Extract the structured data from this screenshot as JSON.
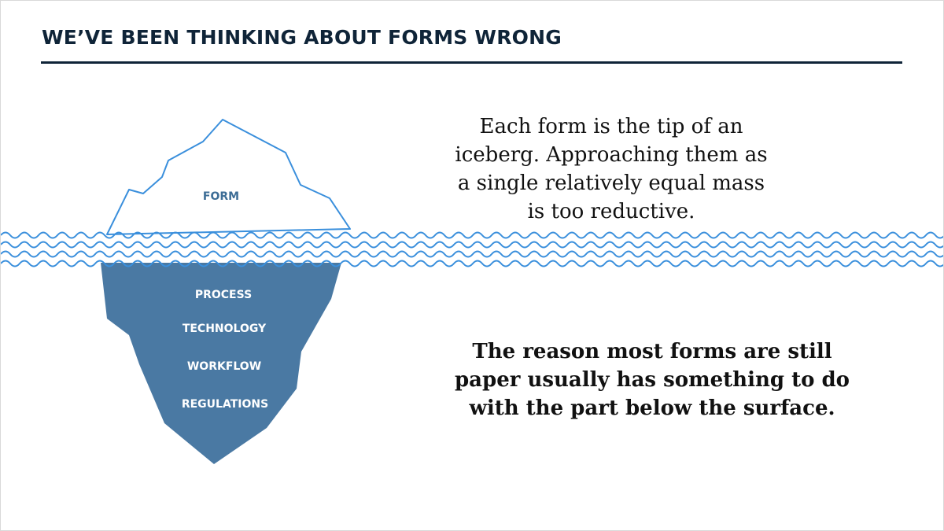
{
  "slide": {
    "title": "WE’VE BEEN THINKING ABOUT FORMS WRONG"
  },
  "diagram": {
    "above_surface_label": "FORM",
    "below_surface_labels": [
      "PROCESS",
      "TECHNOLOGY",
      "WORKFLOW",
      "REGULATIONS"
    ],
    "colors": {
      "outline": "#3a8fdc",
      "submerged": "#4a79a3",
      "above_label": "#3d6d96",
      "below_label": "#ffffff",
      "water": "#3a8fdc"
    }
  },
  "text": {
    "top_paragraph": "Each form is the tip of an iceberg. Approaching them as a single relatively equal mass is too reductive.",
    "bottom_paragraph": "The reason most forms are still paper usually has something to do with the part below the surface."
  }
}
